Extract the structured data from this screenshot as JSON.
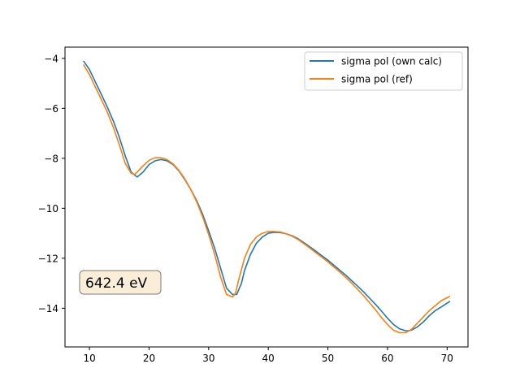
{
  "chart_data": {
    "type": "line",
    "title": "",
    "xlabel": "",
    "ylabel": "",
    "xlim": [
      5.9,
      73.5
    ],
    "ylim": [
      -15.55,
      -3.55
    ],
    "xticks": [
      10,
      20,
      30,
      40,
      50,
      60,
      70
    ],
    "yticks": [
      -4,
      -6,
      -8,
      -10,
      -12,
      -14
    ],
    "grid": false,
    "legend_position": "upper right",
    "annotation": "642.4 eV",
    "series": [
      {
        "name": "sigma pol (own calc)",
        "color": "#1f77b4",
        "x": [
          9,
          10,
          11,
          12,
          13,
          14,
          15,
          16,
          17,
          18,
          19,
          20,
          21,
          22,
          23,
          24,
          25,
          26,
          27,
          28,
          29,
          30,
          31,
          32,
          33,
          34,
          34.7,
          35.5,
          36,
          37,
          38,
          39,
          40,
          41,
          42,
          43,
          44,
          45,
          46,
          47,
          48,
          49,
          50,
          51,
          52,
          53,
          54,
          55,
          56,
          57,
          58,
          59,
          60,
          61,
          62,
          63,
          63.5,
          64,
          65,
          66,
          67,
          68,
          69,
          70.5
        ],
        "y": [
          -4.1,
          -4.45,
          -4.95,
          -5.45,
          -5.95,
          -6.5,
          -7.15,
          -7.9,
          -8.55,
          -8.75,
          -8.55,
          -8.25,
          -8.1,
          -8.05,
          -8.1,
          -8.25,
          -8.5,
          -8.85,
          -9.25,
          -9.7,
          -10.25,
          -10.9,
          -11.6,
          -12.4,
          -13.2,
          -13.45,
          -13.45,
          -13.0,
          -12.5,
          -11.85,
          -11.4,
          -11.15,
          -11.0,
          -10.96,
          -10.97,
          -11.02,
          -11.1,
          -11.22,
          -11.38,
          -11.55,
          -11.72,
          -11.9,
          -12.08,
          -12.28,
          -12.48,
          -12.68,
          -12.9,
          -13.12,
          -13.35,
          -13.6,
          -13.85,
          -14.12,
          -14.4,
          -14.65,
          -14.82,
          -14.9,
          -14.9,
          -14.88,
          -14.75,
          -14.55,
          -14.3,
          -14.1,
          -13.95,
          -13.72
        ]
      },
      {
        "name": "sigma pol (ref)",
        "color": "#ff7f0e",
        "x": [
          9,
          10,
          11,
          12,
          13,
          14,
          15,
          16,
          17,
          17.6,
          18,
          19,
          20,
          21,
          22,
          23,
          24,
          25,
          26,
          27,
          28,
          29,
          30,
          31,
          32,
          33,
          34,
          34.5,
          35,
          36,
          37,
          38,
          39,
          40,
          41,
          42,
          43,
          44,
          45,
          46,
          47,
          48,
          49,
          50,
          51,
          52,
          53,
          54,
          55,
          56,
          57,
          58,
          59,
          60,
          61,
          62,
          63,
          64,
          65,
          66,
          67,
          68,
          69,
          70.5
        ],
        "y": [
          -4.25,
          -4.65,
          -5.15,
          -5.65,
          -6.15,
          -6.75,
          -7.45,
          -8.2,
          -8.6,
          -8.65,
          -8.55,
          -8.3,
          -8.08,
          -7.98,
          -7.98,
          -8.05,
          -8.22,
          -8.48,
          -8.82,
          -9.25,
          -9.75,
          -10.35,
          -11.05,
          -11.85,
          -12.75,
          -13.45,
          -13.55,
          -13.4,
          -12.9,
          -12.0,
          -11.45,
          -11.15,
          -11.0,
          -10.93,
          -10.93,
          -10.95,
          -11.02,
          -11.12,
          -11.25,
          -11.42,
          -11.6,
          -11.78,
          -11.96,
          -12.15,
          -12.35,
          -12.55,
          -12.77,
          -13.0,
          -13.25,
          -13.5,
          -13.78,
          -14.07,
          -14.38,
          -14.65,
          -14.88,
          -14.98,
          -14.98,
          -14.85,
          -14.6,
          -14.35,
          -14.1,
          -13.9,
          -13.7,
          -13.52
        ]
      }
    ]
  }
}
